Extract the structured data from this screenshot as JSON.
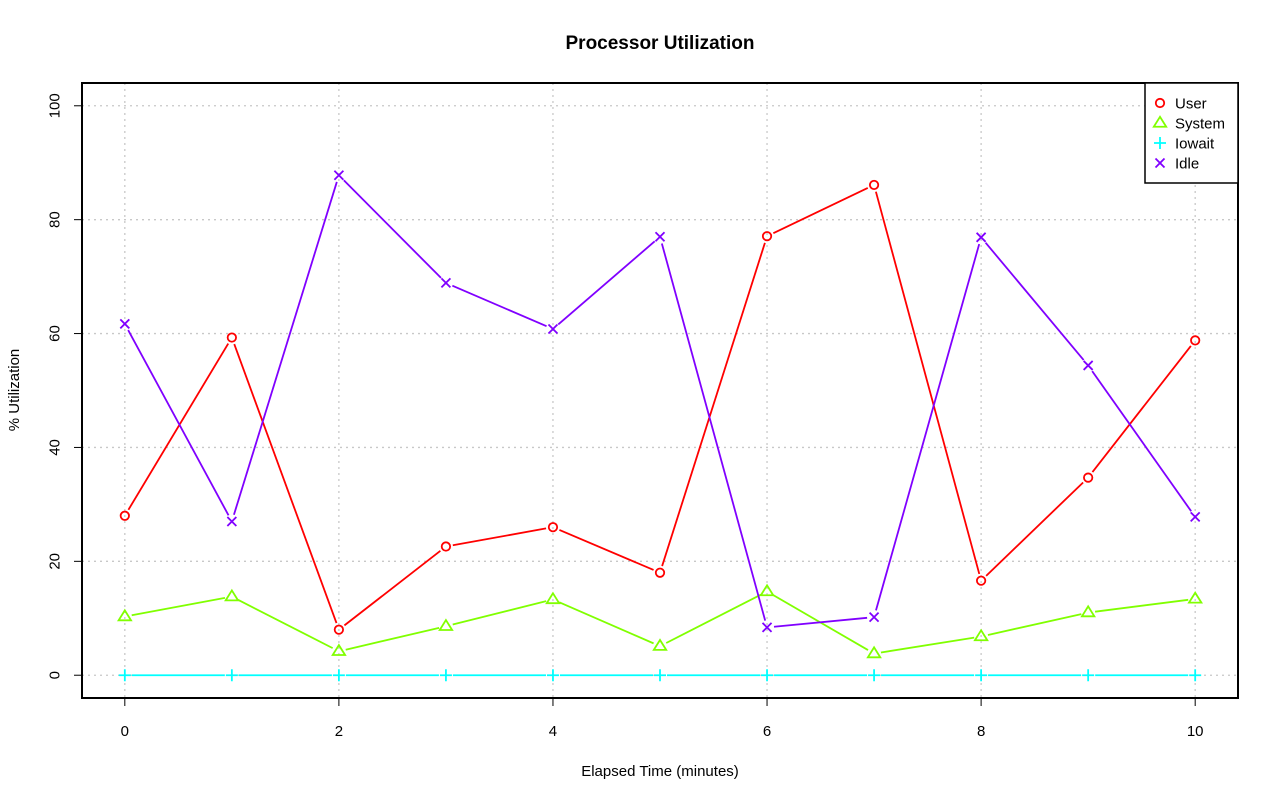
{
  "chart_data": {
    "type": "line",
    "title": "Processor Utilization",
    "xlabel": "Elapsed Time (minutes)",
    "ylabel": "% Utilization",
    "x": [
      0,
      1,
      2,
      3,
      4,
      5,
      6,
      7,
      8,
      9,
      10
    ],
    "xlim": [
      -0.4,
      10.4
    ],
    "ylim": [
      -4,
      104
    ],
    "x_ticks": [
      "0",
      "2",
      "4",
      "6",
      "8",
      "10"
    ],
    "y_ticks": [
      "0",
      "20",
      "40",
      "60",
      "80",
      "100"
    ],
    "grid": true,
    "legend_position": "top-right",
    "series": [
      {
        "name": "User",
        "color": "#ff0000",
        "marker": "circle",
        "values": [
          28.0,
          59.3,
          8.0,
          22.6,
          26.0,
          18.0,
          77.1,
          86.1,
          16.6,
          34.7,
          58.8
        ]
      },
      {
        "name": "System",
        "color": "#80ff00",
        "marker": "triangle",
        "values": [
          10.3,
          13.8,
          4.2,
          8.6,
          13.3,
          5.1,
          14.7,
          3.8,
          6.8,
          11.0,
          13.4
        ]
      },
      {
        "name": "Iowait",
        "color": "#00ffff",
        "marker": "plus",
        "values": [
          0,
          0,
          0,
          0,
          0,
          0,
          0,
          0,
          0,
          0,
          0
        ]
      },
      {
        "name": "Idle",
        "color": "#8000ff",
        "marker": "cross",
        "values": [
          61.7,
          27.0,
          87.8,
          68.9,
          60.8,
          77.0,
          8.4,
          10.2,
          76.9,
          54.4,
          27.8
        ]
      }
    ]
  }
}
